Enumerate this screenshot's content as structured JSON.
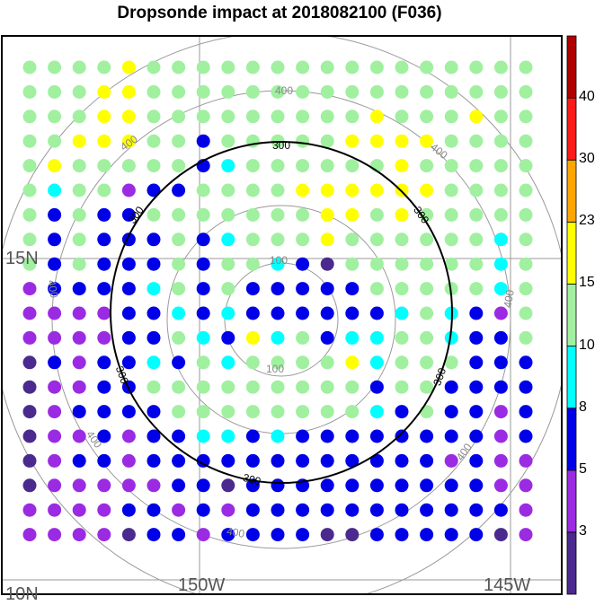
{
  "title": "Dropsonde impact at 2018082100 (F036)",
  "map": {
    "lat_labels": [
      "15N",
      "10N"
    ],
    "lon_labels": [
      "150W",
      "145W"
    ],
    "contours": {
      "black_label": "300",
      "gray_labels": [
        "100",
        "200",
        "400"
      ]
    }
  },
  "colorbar": {
    "labels": [
      "3",
      "5",
      "8",
      "10",
      "15",
      "23",
      "30",
      "40"
    ],
    "colors": [
      "#4b2a8f",
      "#9b2be3",
      "#0000e8",
      "#00ffff",
      "#a0f0a0",
      "#ffff00",
      "#ffa500",
      "#ff1a1a",
      "#b00000"
    ]
  },
  "chart_data": {
    "type": "scatter",
    "title": "Dropsonde impact at 2018082100 (F036)",
    "grid_rows": 20,
    "grid_cols": 21,
    "legend": {
      "bins": [
        "<3",
        "3-5",
        "5-8",
        "8-10",
        "10-15",
        "15-23",
        "23-30",
        "30-40",
        ">40"
      ],
      "codes": "0=<3, 1=3-5, 2=5-8, 3=8-10, 4=10-15, 5=15-23"
    },
    "point_classes": [
      "444454444444444444444",
      "444554444444444444444",
      "444554444444445444544",
      "445554424444455554444",
      "454444423444444544444",
      "434412244445555554444",
      "424224444444554544444",
      "424222423444544444434",
      "424222424432044444434",
      "122223424222224444434",
      "111122323222222343214",
      "111122432534233443224",
      "021223243444453444222",
      "011224444444442442222",
      "012222444444443242212",
      "011212233232222222212",
      "012212222222222221211",
      "011111220222222222211",
      "111122121222222222221",
      "111102212222002222201"
    ]
  }
}
